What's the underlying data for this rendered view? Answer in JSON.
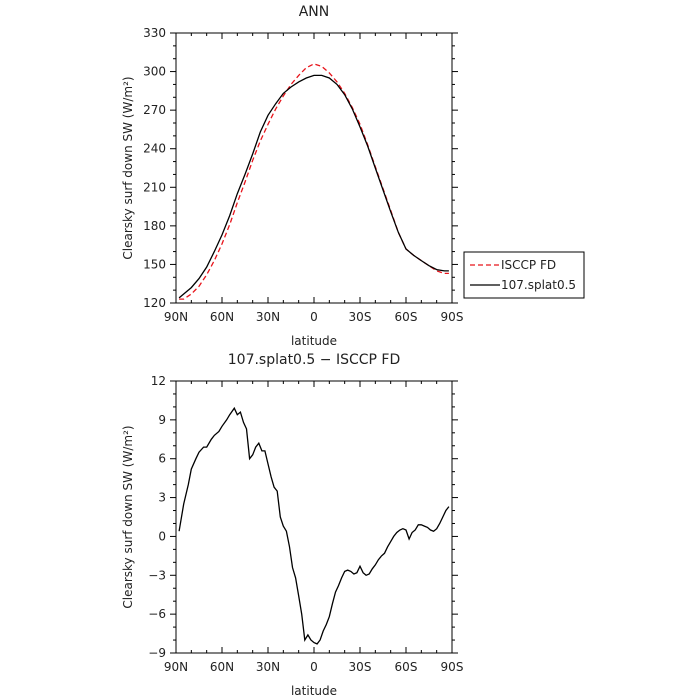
{
  "chart_data": [
    {
      "type": "line",
      "title": "ANN",
      "xlabel": "latitude",
      "ylabel": "Clearsky surf down SW (W/m²)",
      "xlim": [
        -90,
        90
      ],
      "ylim": [
        120,
        330
      ],
      "x_ticks": [
        -90,
        -60,
        -30,
        0,
        30,
        60,
        90
      ],
      "x_tick_labels": [
        "90N",
        "60N",
        "30N",
        "0",
        "30S",
        "60S",
        "90S"
      ],
      "y_ticks": [
        120,
        150,
        180,
        210,
        240,
        270,
        300,
        330
      ],
      "y_tick_labels": [
        "120",
        "150",
        "180",
        "210",
        "240",
        "270",
        "300",
        "330"
      ],
      "legend": {
        "placement": "right",
        "entries": [
          "ISCCP FD",
          "107.splat0.5"
        ]
      },
      "series": [
        {
          "name": "ISCCP FD",
          "color": "#e8141b",
          "dash": "dashed",
          "x": [
            -88,
            -85,
            -80,
            -75,
            -70,
            -65,
            -60,
            -55,
            -50,
            -45,
            -40,
            -35,
            -30,
            -25,
            -20,
            -15,
            -10,
            -5,
            0,
            5,
            10,
            15,
            20,
            25,
            30,
            35,
            40,
            45,
            50,
            55,
            60,
            65,
            70,
            75,
            80,
            85,
            88
          ],
          "y": [
            123,
            123,
            127,
            133,
            142,
            153,
            166,
            181,
            198,
            214,
            231,
            246,
            259,
            271,
            281,
            290,
            297,
            303,
            306,
            304,
            299,
            292,
            283,
            272,
            259,
            243,
            226,
            209,
            192,
            175,
            162,
            157,
            153,
            149,
            145,
            143,
            143
          ]
        },
        {
          "name": "107.splat0.5",
          "color": "#000000",
          "dash": "solid",
          "x": [
            -88,
            -85,
            -80,
            -75,
            -70,
            -65,
            -60,
            -55,
            -50,
            -45,
            -40,
            -35,
            -30,
            -25,
            -20,
            -15,
            -10,
            -5,
            0,
            5,
            10,
            15,
            20,
            25,
            30,
            35,
            40,
            45,
            50,
            55,
            60,
            65,
            70,
            75,
            80,
            85,
            88
          ],
          "y": [
            124,
            127,
            132,
            139,
            148,
            160,
            173,
            188,
            205,
            220,
            236,
            253,
            266,
            275,
            283,
            288,
            292,
            295,
            297,
            297,
            295,
            290,
            282,
            271,
            257,
            242,
            225,
            208,
            191,
            175,
            162,
            157,
            153,
            149,
            146,
            145,
            145
          ]
        }
      ]
    },
    {
      "type": "line",
      "title": "107.splat0.5 − ISCCP FD",
      "xlabel": "latitude",
      "ylabel": "Clearsky surf down SW (W/m²)",
      "xlim": [
        -90,
        90
      ],
      "ylim": [
        -9,
        12
      ],
      "x_ticks": [
        -90,
        -60,
        -30,
        0,
        30,
        60,
        90
      ],
      "x_tick_labels": [
        "90N",
        "60N",
        "30N",
        "0",
        "30S",
        "60S",
        "90S"
      ],
      "y_ticks": [
        -9,
        -6,
        -3,
        0,
        3,
        6,
        9,
        12
      ],
      "y_tick_labels": [
        "−9",
        "−6",
        "−3",
        "0",
        "3",
        "6",
        "9",
        "12"
      ],
      "series": [
        {
          "color": "#000000",
          "dash": "solid",
          "x": [
            -88,
            -85,
            -82,
            -80,
            -77,
            -75,
            -72,
            -70,
            -67,
            -65,
            -62,
            -60,
            -57,
            -55,
            -52,
            -50,
            -48,
            -46,
            -44,
            -42,
            -40,
            -38,
            -36,
            -34,
            -32,
            -30,
            -28,
            -26,
            -24,
            -22,
            -20,
            -18,
            -16,
            -14,
            -12,
            -10,
            -8,
            -6,
            -4,
            -2,
            0,
            2,
            4,
            6,
            8,
            10,
            12,
            14,
            16,
            18,
            20,
            22,
            24,
            26,
            28,
            30,
            32,
            34,
            36,
            38,
            40,
            42,
            44,
            46,
            48,
            50,
            52,
            54,
            56,
            58,
            60,
            62,
            64,
            66,
            68,
            70,
            72,
            74,
            76,
            78,
            80,
            82,
            84,
            86,
            88
          ],
          "y": [
            0.4,
            2.5,
            4.0,
            5.2,
            6.0,
            6.5,
            6.9,
            6.9,
            7.5,
            7.8,
            8.1,
            8.5,
            9.0,
            9.4,
            9.9,
            9.4,
            9.6,
            8.8,
            8.3,
            6.0,
            6.3,
            6.9,
            7.2,
            6.6,
            6.6,
            5.6,
            4.6,
            3.8,
            3.5,
            1.5,
            0.8,
            0.4,
            -0.8,
            -2.4,
            -3.2,
            -4.6,
            -6.0,
            -8.0,
            -7.6,
            -8.0,
            -8.2,
            -8.3,
            -8.0,
            -7.3,
            -6.8,
            -6.2,
            -5.2,
            -4.3,
            -3.8,
            -3.2,
            -2.7,
            -2.6,
            -2.7,
            -2.9,
            -2.8,
            -2.3,
            -2.8,
            -3.0,
            -2.9,
            -2.5,
            -2.2,
            -1.8,
            -1.5,
            -1.3,
            -0.8,
            -0.4,
            0.0,
            0.3,
            0.5,
            0.6,
            0.5,
            -0.2,
            0.3,
            0.5,
            0.9,
            0.9,
            0.8,
            0.7,
            0.5,
            0.4,
            0.6,
            1.0,
            1.5,
            2.0,
            2.3
          ]
        }
      ]
    }
  ]
}
